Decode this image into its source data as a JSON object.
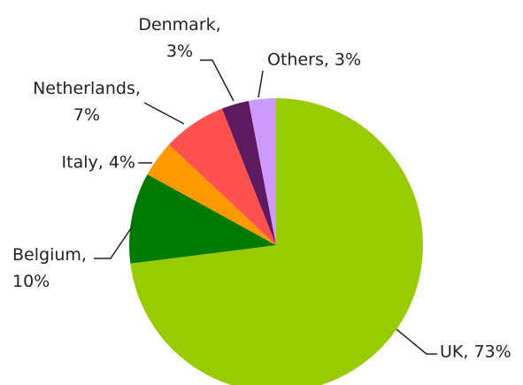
{
  "chart_data": {
    "type": "pie",
    "values": [
      73,
      10,
      4,
      7,
      3,
      3
    ],
    "value_labels": [
      "UK, 73%",
      "Belgium, 10%",
      "Italy, 4%",
      "Netherlands, 7%",
      "Denmark, 3%",
      "Others, 3%"
    ],
    "colors": [
      "#99cc00",
      "#007a00",
      "#ff9900",
      "#ff5050",
      "#5e1a5e",
      "#cc99ff"
    ]
  }
}
